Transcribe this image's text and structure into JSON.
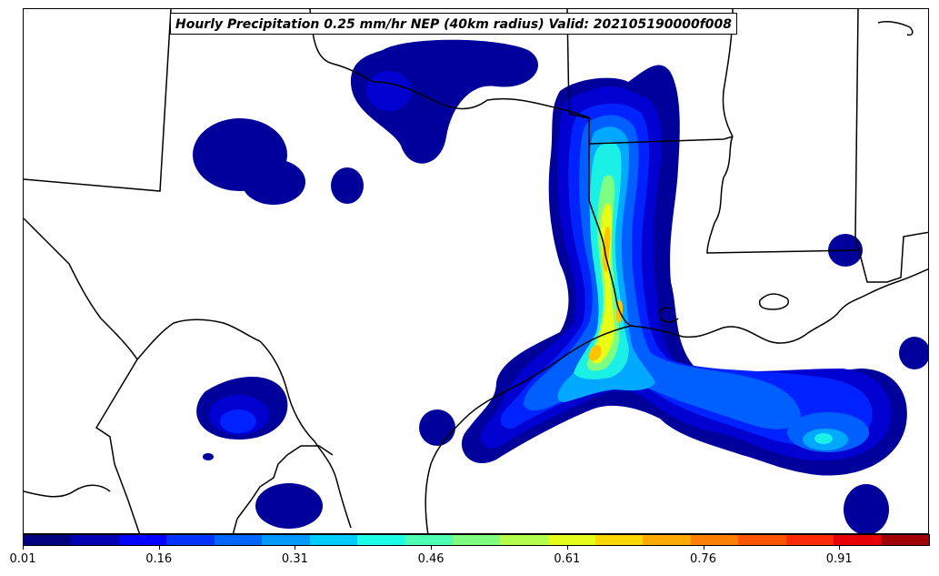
{
  "title": "Hourly Precipitation 0.25 mm/hr NEP (40km radius) Valid: 202105190000f008",
  "colorbar": {
    "colors": [
      "#00007f",
      "#0000b2",
      "#0000ff",
      "#0033ff",
      "#0066ff",
      "#0099ff",
      "#00ccff",
      "#1affe6",
      "#4dffb3",
      "#80ff80",
      "#b3ff4d",
      "#e6ff1a",
      "#ffd700",
      "#ffaa00",
      "#ff7f00",
      "#ff5500",
      "#ff2a00",
      "#e60000",
      "#a00000"
    ],
    "tick_labels": [
      "0.01",
      "0.16",
      "0.31",
      "0.46",
      "0.61",
      "0.76",
      "0.91"
    ],
    "min": 0.01,
    "max": 1.0
  },
  "palette": {
    "navy": "#00009a",
    "blue1": "#0000d0",
    "blue2": "#0022ff",
    "blue3": "#0060ff",
    "cyan1": "#00a8ff",
    "cyan2": "#1af0e6",
    "green": "#7cff82",
    "yellow": "#e8ff18",
    "orange": "#ffc400"
  }
}
